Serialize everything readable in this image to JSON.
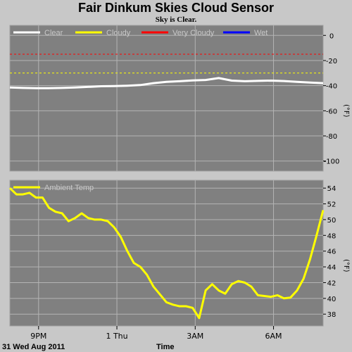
{
  "title": "Fair Dinkum Skies Cloud Sensor",
  "subtitle": "Sky is Clear.",
  "date_label": "31 Wed Aug 2011",
  "xlabel": "Time",
  "x_ticks": [
    "9PM",
    "1 Thu",
    "3AM",
    "6AM"
  ],
  "colors": {
    "background": "#c8c8c8",
    "plot_bg": "#808080",
    "grid": "#b4b4b4",
    "clear": "#ffffff",
    "cloudy": "#ffff00",
    "very_cloudy": "#ff0000",
    "wet": "#0000ff"
  },
  "chart_data": [
    {
      "type": "line",
      "unit_label": "(°F)",
      "ylim": [
        -108,
        8
      ],
      "yticks": [
        "0",
        "-20",
        "-40",
        "-60",
        "-80",
        "-100"
      ],
      "x_hours": [
        0,
        0.5,
        1,
        1.5,
        2,
        2.5,
        3,
        3.5,
        4,
        4.5,
        5,
        5.5,
        6,
        6.5,
        7,
        7.5,
        8,
        8.5,
        9,
        9.5,
        10,
        10.5,
        11,
        11.5,
        12
      ],
      "legend": [
        "Clear",
        "Cloudy",
        "Very Cloudy",
        "Wet"
      ],
      "thresholds": [
        {
          "series": "Very Cloudy",
          "value": -15
        },
        {
          "series": "Cloudy",
          "value": -30
        }
      ],
      "series": [
        {
          "name": "Clear",
          "values": [
            -41.5,
            -41.8,
            -42,
            -42,
            -41.8,
            -41.5,
            -41,
            -40.5,
            -40.3,
            -40,
            -39.5,
            -38,
            -37,
            -36.5,
            -35.8,
            -35.5,
            -34,
            -36,
            -36.5,
            -36.2,
            -36,
            -36.3,
            -37,
            -37.5,
            -38
          ]
        }
      ]
    },
    {
      "type": "line",
      "unit_label": "(°F)",
      "ylim": [
        36.5,
        55
      ],
      "yticks": [
        "54",
        "52",
        "50",
        "48",
        "46",
        "44",
        "42",
        "40",
        "38"
      ],
      "legend": [
        "Ambient Temp"
      ],
      "x_hours": [
        0,
        0.25,
        0.5,
        0.75,
        1,
        1.25,
        1.5,
        1.75,
        2,
        2.25,
        2.5,
        2.75,
        3,
        3.25,
        3.5,
        3.75,
        4,
        4.25,
        4.5,
        4.75,
        5,
        5.25,
        5.5,
        5.75,
        6,
        6.25,
        6.5,
        6.75,
        7,
        7.25,
        7.5,
        7.75,
        8,
        8.25,
        8.5,
        8.75,
        9,
        9.25,
        9.5,
        9.75,
        10,
        10.25,
        10.5,
        10.75,
        11,
        11.25,
        11.5,
        11.75,
        12
      ],
      "series": [
        {
          "name": "Ambient Temp",
          "values": [
            54,
            53.2,
            53.2,
            53.4,
            52.8,
            52.8,
            51.5,
            51,
            50.8,
            49.8,
            50.2,
            50.8,
            50.2,
            50,
            50,
            49.8,
            49,
            47.8,
            46,
            44.5,
            44,
            43,
            41.5,
            40.5,
            39.5,
            39.2,
            39,
            39,
            38.8,
            37.5,
            41,
            41.8,
            41,
            40.6,
            41.8,
            42.2,
            42,
            41.5,
            40.4,
            40.3,
            40.2,
            40.4,
            40,
            40.1,
            41,
            42.5,
            45,
            48,
            51.2
          ]
        }
      ]
    }
  ]
}
